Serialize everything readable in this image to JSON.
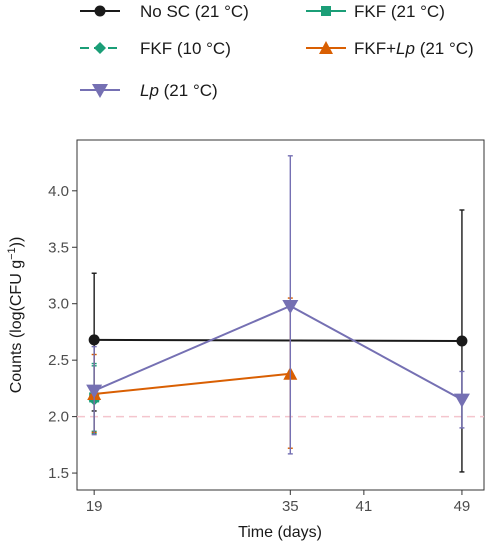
{
  "chart_data": {
    "type": "line",
    "xlabel": "Time (days)",
    "ylabel_parts": {
      "main": "Counts (log(CFU g",
      "sup": "−1",
      "close": "))"
    },
    "xticks": [
      19,
      35,
      41,
      49
    ],
    "yticks": [
      1.5,
      2.0,
      2.5,
      3.0,
      3.5,
      4.0
    ],
    "ytick_labels": [
      "1.5",
      "2.0",
      "2.5",
      "3.0",
      "3.5",
      "4.0"
    ],
    "xlim": [
      17.6,
      50.8
    ],
    "ylim": [
      1.35,
      4.45
    ],
    "reference_line": {
      "y": 2.0,
      "color": "#f4c5cd"
    },
    "series": [
      {
        "id": "nosc",
        "legend": [
          "No SC (21 °C)"
        ],
        "italic": [
          false
        ],
        "color": "#1a1a1a",
        "marker": "circle",
        "dashed": false,
        "points": [
          {
            "x": 19,
            "y": 2.68,
            "lo": 2.05,
            "hi": 3.27
          },
          {
            "x": 49,
            "y": 2.67,
            "lo": 1.51,
            "hi": 3.83
          }
        ]
      },
      {
        "id": "fkf21",
        "legend": [
          "FKF (21 °C)"
        ],
        "italic": [
          false
        ],
        "color": "#1b9e77",
        "marker": "square",
        "dashed": false,
        "points": [
          {
            "x": 19,
            "y": 2.17,
            "lo": 1.87,
            "hi": 2.47
          }
        ]
      },
      {
        "id": "fkf10",
        "legend": [
          "FKF (10 °C)"
        ],
        "italic": [
          false
        ],
        "color": "#1b9e77",
        "marker": "diamond",
        "dashed": true,
        "points": [
          {
            "x": 19,
            "y": 2.15,
            "lo": 1.85,
            "hi": 2.45
          }
        ]
      },
      {
        "id": "fkflp",
        "legend": [
          "FKF+",
          "Lp",
          " (21 °C)"
        ],
        "italic": [
          false,
          true,
          false
        ],
        "color": "#d95f02",
        "marker": "triangle-up",
        "dashed": false,
        "points": [
          {
            "x": 19,
            "y": 2.2,
            "lo": 1.86,
            "hi": 2.55
          },
          {
            "x": 35,
            "y": 2.38,
            "lo": 1.72,
            "hi": 3.05
          }
        ]
      },
      {
        "id": "lp",
        "legend": [
          "Lp",
          " (21 °C)"
        ],
        "italic": [
          true,
          false
        ],
        "color": "#7570b3",
        "marker": "triangle-down",
        "dashed": false,
        "points": [
          {
            "x": 19,
            "y": 2.23,
            "lo": 1.84,
            "hi": 2.62
          },
          {
            "x": 35,
            "y": 2.98,
            "lo": 1.67,
            "hi": 4.31
          },
          {
            "x": 49,
            "y": 2.15,
            "lo": 1.9,
            "hi": 2.4
          }
        ]
      }
    ]
  }
}
